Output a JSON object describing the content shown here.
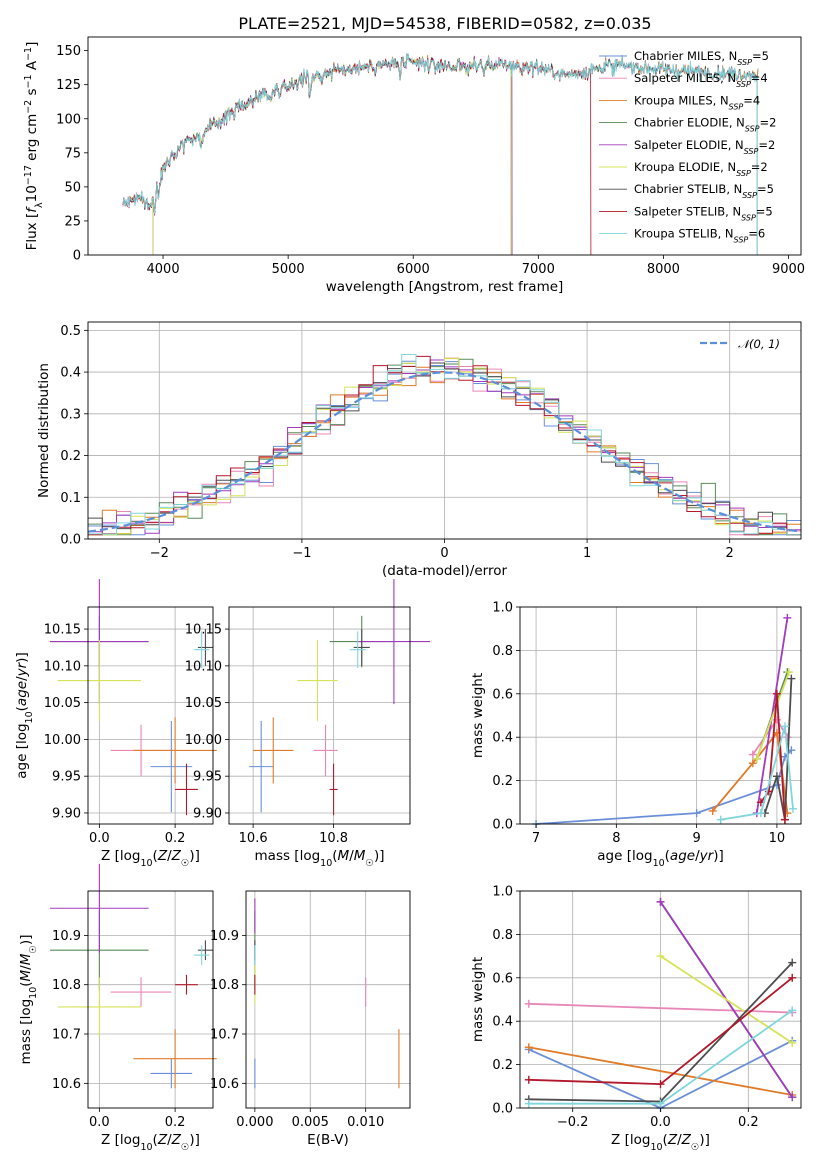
{
  "figure_title": "PLATE=2521, MJD=54538, FIBERID=0582, z=0.035",
  "colors": {
    "Chabrier MILES": "#6a8fd8",
    "Salpeter MILES": "#e986b8",
    "Kroupa MILES": "#e07b2a",
    "Chabrier ELODIE": "#5a8a5a",
    "Salpeter ELODIE": "#a23bbd",
    "Kroupa ELODIE": "#d6e35a",
    "Chabrier STELIB": "#4d4d4d",
    "Salpeter STELIB": "#b2182b",
    "Kroupa STELIB": "#7fd6dc"
  },
  "legend_entries": [
    {
      "base": "Chabrier MILES, N",
      "sub": "SSP",
      "tail": "=5"
    },
    {
      "base": "Salpeter MILES, N",
      "sub": "SSP",
      "tail": "=4"
    },
    {
      "base": "Kroupa MILES, N",
      "sub": "SSP",
      "tail": "=4"
    },
    {
      "base": "Chabrier ELODIE, N",
      "sub": "SSP",
      "tail": "=2"
    },
    {
      "base": "Salpeter ELODIE, N",
      "sub": "SSP",
      "tail": "=2"
    },
    {
      "base": "Kroupa ELODIE, N",
      "sub": "SSP",
      "tail": "=2"
    },
    {
      "base": "Chabrier STELIB, N",
      "sub": "SSP",
      "tail": "=5"
    },
    {
      "base": "Salpeter STELIB, N",
      "sub": "SSP",
      "tail": "=5"
    },
    {
      "base": "Kroupa STELIB, N",
      "sub": "SSP",
      "tail": "=6"
    }
  ],
  "chart_data": [
    {
      "id": "spectrum",
      "type": "line",
      "xlabel": "wavelength [Angstrom, rest frame]",
      "ylabel": "Flux [f_λ 10^-17 erg cm^-2 s^-1 A^-1]",
      "xlim": [
        3400,
        9100
      ],
      "ylim": [
        0,
        160
      ],
      "xticks": [
        4000,
        5000,
        6000,
        7000,
        8000,
        9000
      ],
      "yticks": [
        0,
        25,
        50,
        75,
        100,
        125,
        150
      ],
      "grid": false,
      "legend": "top-right",
      "continuum_wavelength": [
        3680,
        3800,
        3900,
        3950,
        4000,
        4100,
        4200,
        4300,
        4400,
        4600,
        4800,
        5000,
        5200,
        5400,
        5600,
        5800,
        6000,
        6200,
        6400,
        6600,
        6800,
        7000,
        7200,
        7400,
        7600,
        7800,
        8000,
        8200,
        8400,
        8600,
        8800
      ],
      "continuum_flux": [
        38,
        42,
        36,
        50,
        65,
        78,
        85,
        88,
        95,
        108,
        118,
        125,
        132,
        136,
        138,
        140,
        141,
        139,
        138,
        140,
        139,
        138,
        132,
        135,
        140,
        138,
        136,
        135,
        134,
        133,
        132
      ],
      "truncations": [
        {
          "series": "Kroupa ELODIE",
          "wavelength_start": 3920,
          "wavelength_end": 6780
        },
        {
          "series": "Chabrier ELODIE",
          "wavelength_start": 3920,
          "wavelength_end": 6790
        },
        {
          "series": "Salpeter ELODIE",
          "wavelength_start": 3920,
          "wavelength_end": 6790
        },
        {
          "series": "Salpeter STELIB",
          "wavelength_start": 3680,
          "wavelength_end": 7420
        },
        {
          "series": "Kroupa STELIB",
          "wavelength_start": 3680,
          "wavelength_end": 8750
        },
        {
          "series": "Chabrier STELIB",
          "wavelength_start": 3680,
          "wavelength_end": 8750
        }
      ]
    },
    {
      "id": "residuals",
      "type": "line",
      "xlabel": "(data-model)/error",
      "ylabel": "Normed distribution",
      "xlim": [
        -2.5,
        2.5
      ],
      "ylim": [
        0,
        0.52
      ],
      "xticks": [
        -2,
        -1,
        0,
        1,
        2
      ],
      "yticks": [
        0.0,
        0.1,
        0.2,
        0.3,
        0.4,
        0.5
      ],
      "grid": true,
      "legend": "top-right",
      "gaussian_label": "𝒩(0, 1)",
      "gaussian_color": "#5b8fd9",
      "bins": 50
    },
    {
      "id": "age_vs_Z",
      "type": "scatter",
      "xlabel": "Z [log10(Z/Z☉)]",
      "ylabel": "age [log10(age/yr)]",
      "xlim": [
        -0.03,
        0.3
      ],
      "ylim": [
        9.885,
        10.18
      ],
      "xticks": [
        0.0,
        0.2
      ],
      "yticks": [
        9.9,
        9.95,
        10.0,
        10.05,
        10.1,
        10.15
      ],
      "grid": true,
      "points": [
        {
          "series": "Chabrier MILES",
          "x": 0.19,
          "xerr": 0.055,
          "y": 9.963,
          "yerr": 0.062
        },
        {
          "series": "Salpeter MILES",
          "x": 0.11,
          "xerr": 0.08,
          "y": 9.985,
          "yerr": 0.035
        },
        {
          "series": "Kroupa MILES",
          "x": 0.2,
          "xerr": 0.11,
          "y": 9.985,
          "yerr": 0.045
        },
        {
          "series": "Chabrier ELODIE",
          "x": 0.0,
          "xerr": 0.13,
          "y": 10.133,
          "yerr": 0.035
        },
        {
          "series": "Salpeter ELODIE",
          "x": 0.0,
          "xerr": 0.13,
          "y": 10.133,
          "yerr": 0.085
        },
        {
          "series": "Kroupa ELODIE",
          "x": 0.0,
          "xerr": 0.11,
          "y": 10.08,
          "yerr": 0.055
        },
        {
          "series": "Chabrier STELIB",
          "x": 0.28,
          "xerr": 0.02,
          "y": 10.125,
          "yerr": 0.025
        },
        {
          "series": "Salpeter STELIB",
          "x": 0.23,
          "xerr": 0.03,
          "y": 9.932,
          "yerr": 0.035
        },
        {
          "series": "Kroupa STELIB",
          "x": 0.27,
          "xerr": 0.02,
          "y": 10.122,
          "yerr": 0.025
        }
      ]
    },
    {
      "id": "age_vs_mass",
      "type": "scatter",
      "xlabel": "mass [log10(M/M☉)]",
      "ylabel": "",
      "xlim": [
        10.54,
        10.99
      ],
      "ylim": [
        9.885,
        10.18
      ],
      "xticks": [
        10.6,
        10.8
      ],
      "yticks": [
        9.9,
        9.95,
        10.0,
        10.05,
        10.1,
        10.15
      ],
      "grid": true,
      "points": [
        {
          "series": "Chabrier MILES",
          "x": 10.62,
          "xerr": 0.03,
          "y": 9.963,
          "yerr": 0.062
        },
        {
          "series": "Salpeter MILES",
          "x": 10.78,
          "xerr": 0.03,
          "y": 9.985,
          "yerr": 0.035
        },
        {
          "series": "Kroupa MILES",
          "x": 10.65,
          "xerr": 0.05,
          "y": 9.985,
          "yerr": 0.045
        },
        {
          "series": "Chabrier ELODIE",
          "x": 10.87,
          "xerr": 0.08,
          "y": 10.133,
          "yerr": 0.035
        },
        {
          "series": "Salpeter ELODIE",
          "x": 10.95,
          "xerr": 0.09,
          "y": 10.133,
          "yerr": 0.085
        },
        {
          "series": "Kroupa ELODIE",
          "x": 10.76,
          "xerr": 0.05,
          "y": 10.08,
          "yerr": 0.055
        },
        {
          "series": "Chabrier STELIB",
          "x": 10.87,
          "xerr": 0.02,
          "y": 10.125,
          "yerr": 0.025
        },
        {
          "series": "Salpeter STELIB",
          "x": 10.8,
          "xerr": 0.01,
          "y": 9.932,
          "yerr": 0.035
        },
        {
          "series": "Kroupa STELIB",
          "x": 10.86,
          "xerr": 0.02,
          "y": 10.122,
          "yerr": 0.025
        }
      ]
    },
    {
      "id": "massweight_vs_age",
      "type": "line",
      "xlabel": "age [log10(age/yr)]",
      "ylabel": "mass weight",
      "xlim": [
        6.8,
        10.3
      ],
      "ylim": [
        0,
        1.0
      ],
      "xticks": [
        7,
        8,
        9,
        10
      ],
      "yticks": [
        0.0,
        0.2,
        0.4,
        0.6,
        0.8,
        1.0
      ],
      "grid": true,
      "series": [
        {
          "name": "Chabrier MILES",
          "x": [
            7.0,
            9.0,
            10.0,
            10.1,
            10.18
          ],
          "y": [
            0.0,
            0.05,
            0.18,
            0.31,
            0.34
          ]
        },
        {
          "name": "Salpeter MILES",
          "x": [
            9.7,
            10.0,
            10.13
          ],
          "y": [
            0.32,
            0.48,
            0.4
          ]
        },
        {
          "name": "Kroupa MILES",
          "x": [
            9.2,
            9.7,
            10.0,
            10.13
          ],
          "y": [
            0.06,
            0.28,
            0.42,
            0.05
          ]
        },
        {
          "name": "Chabrier ELODIE",
          "x": [
            9.75,
            10.13
          ],
          "y": [
            0.3,
            0.7
          ]
        },
        {
          "name": "Salpeter ELODIE",
          "x": [
            9.75,
            10.13
          ],
          "y": [
            0.05,
            0.95
          ]
        },
        {
          "name": "Kroupa ELODIE",
          "x": [
            9.75,
            10.15
          ],
          "y": [
            0.3,
            0.7
          ]
        },
        {
          "name": "Chabrier STELIB",
          "x": [
            9.85,
            10.0,
            10.1,
            10.18
          ],
          "y": [
            0.05,
            0.22,
            0.02,
            0.67
          ]
        },
        {
          "name": "Salpeter STELIB",
          "x": [
            9.8,
            9.9,
            10.0,
            10.1
          ],
          "y": [
            0.1,
            0.15,
            0.6,
            0.02
          ]
        },
        {
          "name": "Kroupa STELIB",
          "x": [
            9.3,
            9.8,
            10.1,
            10.2
          ],
          "y": [
            0.02,
            0.05,
            0.45,
            0.07
          ]
        }
      ]
    },
    {
      "id": "mass_vs_Z",
      "type": "scatter",
      "xlabel": "Z [log10(Z/Z☉)]",
      "ylabel": "mass [log10(M/M☉)]",
      "xlim": [
        -0.03,
        0.3
      ],
      "ylim": [
        10.55,
        10.99
      ],
      "xticks": [
        0.0,
        0.2
      ],
      "yticks": [
        10.6,
        10.7,
        10.8,
        10.9
      ],
      "grid": true,
      "points": [
        {
          "series": "Chabrier MILES",
          "x": 0.19,
          "xerr": 0.055,
          "y": 10.62,
          "yerr": 0.03
        },
        {
          "series": "Salpeter MILES",
          "x": 0.11,
          "xerr": 0.08,
          "y": 10.785,
          "yerr": 0.03
        },
        {
          "series": "Kroupa MILES",
          "x": 0.2,
          "xerr": 0.11,
          "y": 10.65,
          "yerr": 0.06
        },
        {
          "series": "Chabrier ELODIE",
          "x": 0.0,
          "xerr": 0.13,
          "y": 10.87,
          "yerr": 0.08
        },
        {
          "series": "Salpeter ELODIE",
          "x": 0.0,
          "xerr": 0.13,
          "y": 10.955,
          "yerr": 0.09
        },
        {
          "series": "Kroupa ELODIE",
          "x": 0.0,
          "xerr": 0.11,
          "y": 10.755,
          "yerr": 0.06
        },
        {
          "series": "Chabrier STELIB",
          "x": 0.28,
          "xerr": 0.02,
          "y": 10.87,
          "yerr": 0.02
        },
        {
          "series": "Salpeter STELIB",
          "x": 0.23,
          "xerr": 0.03,
          "y": 10.8,
          "yerr": 0.02
        },
        {
          "series": "Kroupa STELIB",
          "x": 0.27,
          "xerr": 0.02,
          "y": 10.86,
          "yerr": 0.02
        }
      ]
    },
    {
      "id": "mass_vs_ebv",
      "type": "scatter",
      "xlabel": "E(B-V)",
      "ylabel": "",
      "xlim": [
        -0.0008,
        0.014
      ],
      "ylim": [
        10.55,
        10.99
      ],
      "xticks": [
        0.0,
        0.005,
        0.01
      ],
      "xticklabels": [
        "0.000",
        "0.005",
        "0.010"
      ],
      "yticks": [
        10.6,
        10.7,
        10.8,
        10.9
      ],
      "grid": true,
      "points": [
        {
          "series": "Chabrier MILES",
          "x": 0.0,
          "y": 10.62,
          "yerr": 0.03
        },
        {
          "series": "Salpeter MILES",
          "x": 0.01,
          "y": 10.785,
          "yerr": 0.03
        },
        {
          "series": "Kroupa MILES",
          "x": 0.013,
          "y": 10.65,
          "yerr": 0.06
        },
        {
          "series": "Chabrier ELODIE",
          "x": 0.0,
          "y": 10.87,
          "yerr": 0.08
        },
        {
          "series": "Salpeter ELODIE",
          "x": 0.0,
          "y": 10.94,
          "yerr": 0.035
        },
        {
          "series": "Kroupa ELODIE",
          "x": 0.0,
          "y": 10.8,
          "yerr": 0.04
        },
        {
          "series": "Chabrier STELIB",
          "x": 0.0,
          "y": 10.87,
          "yerr": 0.02
        },
        {
          "series": "Salpeter STELIB",
          "x": 0.0,
          "y": 10.8,
          "yerr": 0.02
        },
        {
          "series": "Kroupa STELIB",
          "x": 0.0,
          "y": 10.86,
          "yerr": 0.02
        }
      ]
    },
    {
      "id": "massweight_vs_Z",
      "type": "line",
      "xlabel": "Z [log10(Z/Z☉)]",
      "ylabel": "mass weight",
      "xlim": [
        -0.32,
        0.32
      ],
      "ylim": [
        0,
        1.0
      ],
      "xticks": [
        -0.2,
        0.0,
        0.2
      ],
      "yticks": [
        0.0,
        0.2,
        0.4,
        0.6,
        0.8,
        1.0
      ],
      "grid": true,
      "series": [
        {
          "name": "Chabrier MILES",
          "x": [
            -0.3,
            0.0,
            0.3
          ],
          "y": [
            0.27,
            0.0,
            0.31
          ]
        },
        {
          "name": "Salpeter MILES",
          "x": [
            -0.3,
            0.3
          ],
          "y": [
            0.48,
            0.44
          ]
        },
        {
          "name": "Kroupa MILES",
          "x": [
            -0.3,
            0.3
          ],
          "y": [
            0.28,
            0.06
          ]
        },
        {
          "name": "Chabrier ELODIE",
          "x": [
            0.0,
            0.3
          ],
          "y": [
            0.95,
            0.05
          ]
        },
        {
          "name": "Salpeter ELODIE",
          "x": [
            0.0,
            0.3
          ],
          "y": [
            0.95,
            0.05
          ]
        },
        {
          "name": "Kroupa ELODIE",
          "x": [
            0.0,
            0.3
          ],
          "y": [
            0.7,
            0.3
          ]
        },
        {
          "name": "Chabrier STELIB",
          "x": [
            -0.3,
            0.0,
            0.3
          ],
          "y": [
            0.04,
            0.03,
            0.67
          ]
        },
        {
          "name": "Salpeter STELIB",
          "x": [
            -0.3,
            0.0,
            0.3
          ],
          "y": [
            0.13,
            0.11,
            0.6
          ]
        },
        {
          "name": "Kroupa STELIB",
          "x": [
            -0.3,
            0.0,
            0.3
          ],
          "y": [
            0.02,
            0.02,
            0.45
          ]
        }
      ]
    }
  ]
}
